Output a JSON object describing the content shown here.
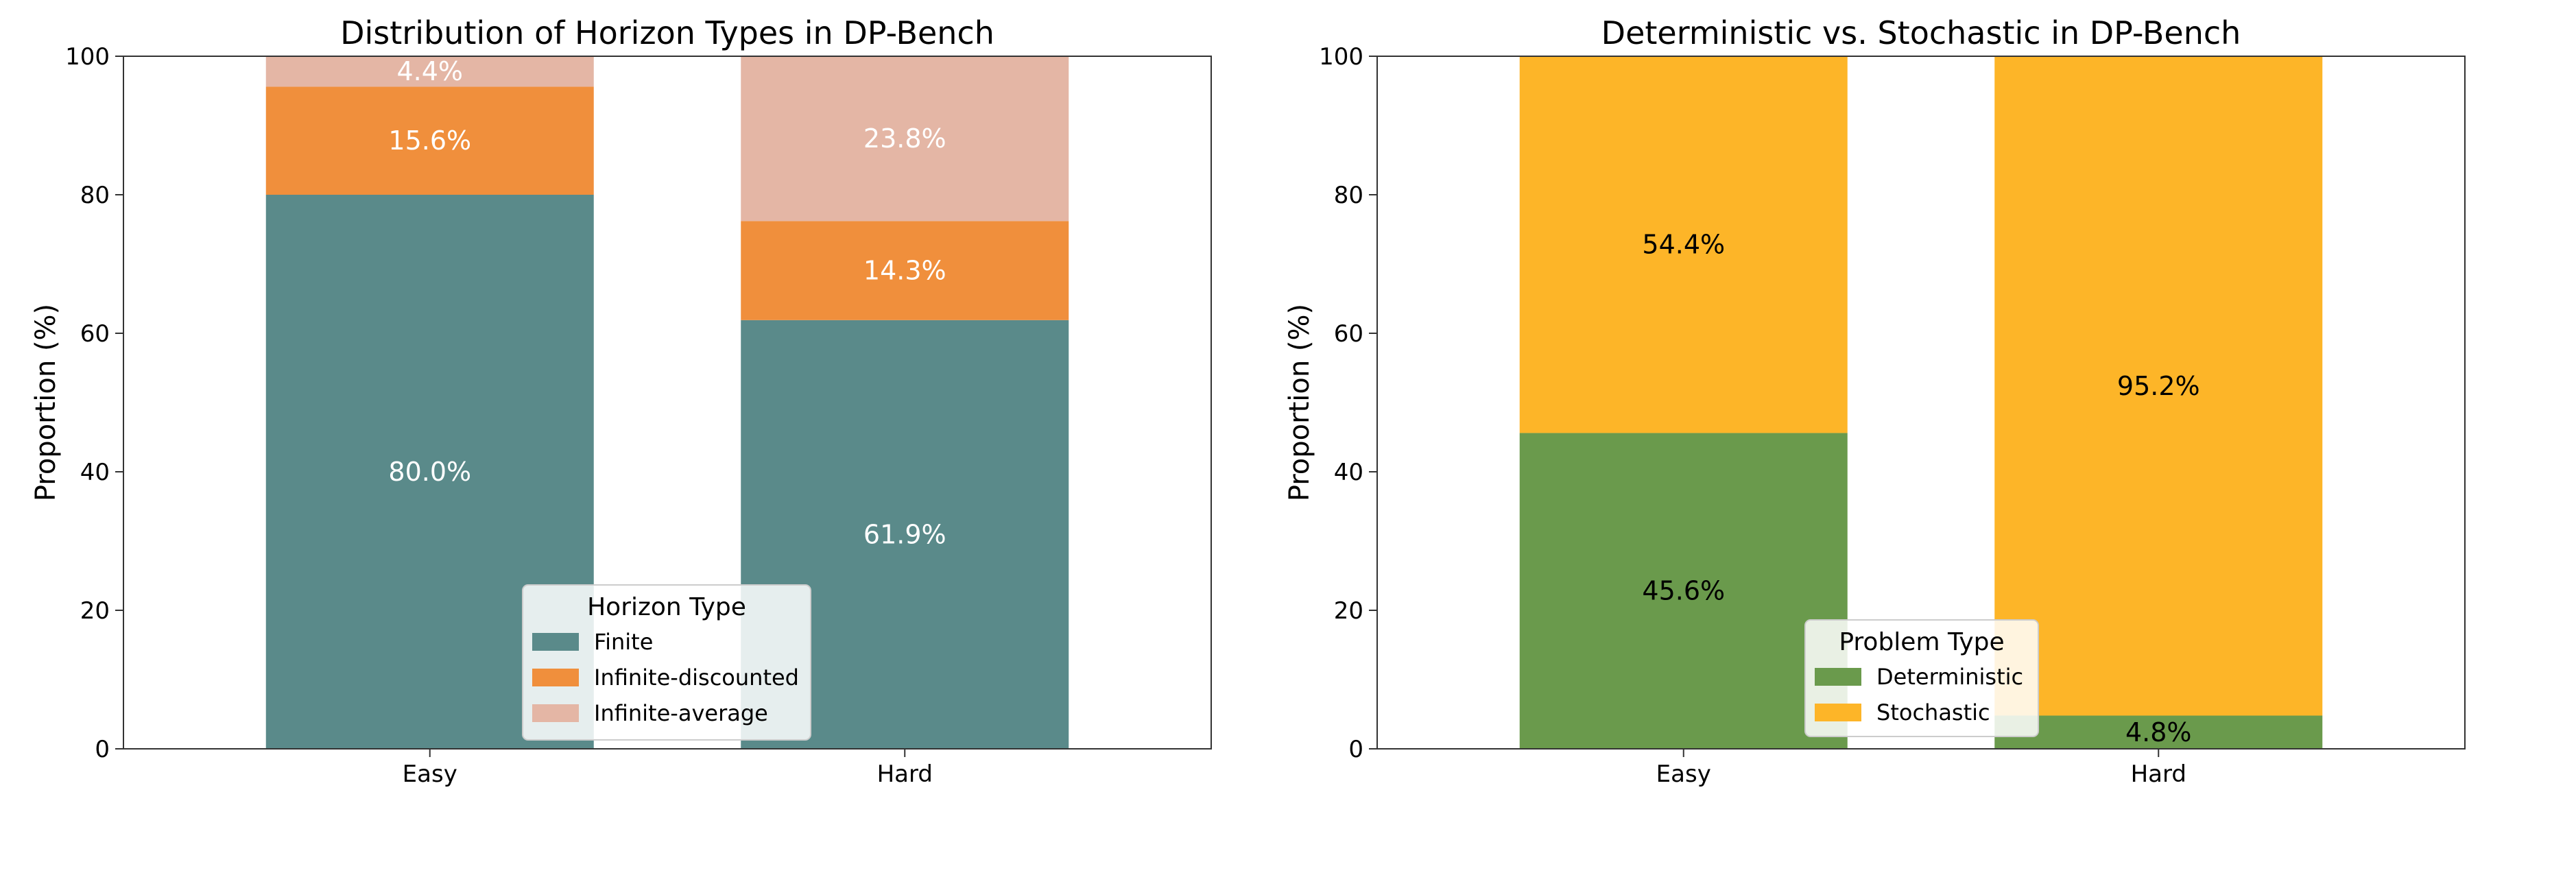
{
  "chart_data": [
    {
      "type": "bar",
      "stacked": true,
      "title": "Distribution of Horizon Types in DP-Bench",
      "xlabel": "",
      "ylabel": "Proportion (%)",
      "ylim": [
        0,
        100
      ],
      "yticks": [
        0,
        20,
        40,
        60,
        80,
        100
      ],
      "categories": [
        "Easy",
        "Hard"
      ],
      "series": [
        {
          "name": "Finite",
          "values": [
            80.0,
            61.9
          ],
          "labels": [
            "80.0%",
            "61.9%"
          ],
          "color": "#5a8a8a",
          "label_color": "#ffffff"
        },
        {
          "name": "Infinite-discounted",
          "values": [
            15.6,
            14.3
          ],
          "labels": [
            "15.6%",
            "14.3%"
          ],
          "color": "#f08f3c",
          "label_color": "#ffffff"
        },
        {
          "name": "Infinite-average",
          "values": [
            4.4,
            23.8
          ],
          "labels": [
            "4.4%",
            "23.8%"
          ],
          "color": "#e4b6a5",
          "label_color": "#ffffff"
        }
      ],
      "legend": {
        "title": "Horizon Type",
        "position": "lower-center"
      }
    },
    {
      "type": "bar",
      "stacked": true,
      "title": "Deterministic vs. Stochastic in DP-Bench",
      "xlabel": "",
      "ylabel": "Proportion (%)",
      "ylim": [
        0,
        100
      ],
      "yticks": [
        0,
        20,
        40,
        60,
        80,
        100
      ],
      "categories": [
        "Easy",
        "Hard"
      ],
      "series": [
        {
          "name": "Deterministic",
          "values": [
            45.6,
            4.8
          ],
          "labels": [
            "45.6%",
            "4.8%"
          ],
          "color": "#6a9a4c",
          "label_color": "#000000"
        },
        {
          "name": "Stochastic",
          "values": [
            54.4,
            95.2
          ],
          "labels": [
            "54.4%",
            "95.2%"
          ],
          "color": "#fdb528",
          "label_color": "#000000"
        }
      ],
      "legend": {
        "title": "Problem Type",
        "position": "lower-center"
      }
    }
  ]
}
